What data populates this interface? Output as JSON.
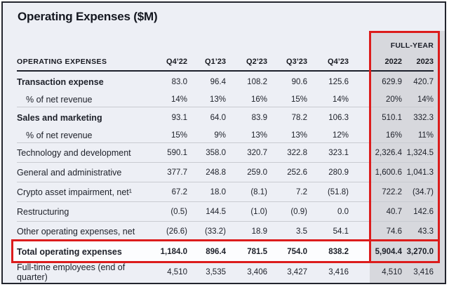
{
  "title": "Operating Expenses ($M)",
  "table": {
    "label_header": "OPERATING EXPENSES",
    "full_year_header": "FULL-YEAR",
    "quarter_columns": [
      "Q4’22",
      "Q1’23",
      "Q2’23",
      "Q3’23",
      "Q4’23"
    ],
    "year_columns": [
      "2022",
      "2023"
    ],
    "rows": [
      {
        "label": "Transaction expense",
        "bold": true,
        "indent": false,
        "total": false,
        "divider_below": false,
        "values": [
          "83.0",
          "96.4",
          "108.2",
          "90.6",
          "125.6"
        ],
        "full_year": [
          "629.9",
          "420.7"
        ]
      },
      {
        "label": "% of net revenue",
        "bold": false,
        "indent": true,
        "total": false,
        "divider_below": true,
        "values": [
          "14%",
          "13%",
          "16%",
          "15%",
          "14%"
        ],
        "full_year": [
          "20%",
          "14%"
        ]
      },
      {
        "label": "Sales and marketing",
        "bold": true,
        "indent": false,
        "total": false,
        "divider_below": false,
        "values": [
          "93.1",
          "64.0",
          "83.9",
          "78.2",
          "106.3"
        ],
        "full_year": [
          "510.1",
          "332.3"
        ]
      },
      {
        "label": "% of net revenue",
        "bold": false,
        "indent": true,
        "total": false,
        "divider_below": true,
        "values": [
          "15%",
          "9%",
          "13%",
          "13%",
          "12%"
        ],
        "full_year": [
          "16%",
          "11%"
        ]
      },
      {
        "label": "Technology and development",
        "bold": false,
        "indent": false,
        "total": false,
        "divider_below": true,
        "values": [
          "590.1",
          "358.0",
          "320.7",
          "322.8",
          "323.1"
        ],
        "full_year": [
          "2,326.4",
          "1,324.5"
        ]
      },
      {
        "label": "General and administrative",
        "bold": false,
        "indent": false,
        "total": false,
        "divider_below": true,
        "values": [
          "377.7",
          "248.8",
          "259.0",
          "252.6",
          "280.9"
        ],
        "full_year": [
          "1,600.6",
          "1,041.3"
        ]
      },
      {
        "label": "Crypto asset impairment, net¹",
        "bold": false,
        "indent": false,
        "total": false,
        "divider_below": true,
        "values": [
          "67.2",
          "18.0",
          "(8.1)",
          "7.2",
          "(51.8)"
        ],
        "full_year": [
          "722.2",
          "(34.7)"
        ]
      },
      {
        "label": "Restructuring",
        "bold": false,
        "indent": false,
        "total": false,
        "divider_below": true,
        "values": [
          "(0.5)",
          "144.5",
          "(1.0)",
          "(0.9)",
          "0.0"
        ],
        "full_year": [
          "40.7",
          "142.6"
        ]
      },
      {
        "label": "Other operating expenses, net",
        "bold": false,
        "indent": false,
        "total": false,
        "divider_below": false,
        "values": [
          "(26.6)",
          "(33.2)",
          "18.9",
          "3.5",
          "54.1"
        ],
        "full_year": [
          "74.6",
          "43.3"
        ]
      },
      {
        "label": "Total operating expenses",
        "bold": true,
        "indent": false,
        "total": true,
        "divider_below": false,
        "values": [
          "1,184.0",
          "896.4",
          "781.5",
          "754.0",
          "838.2"
        ],
        "full_year": [
          "5,904.4",
          "3,270.0"
        ]
      },
      {
        "label": "Full-time employees (end of quarter)",
        "bold": false,
        "indent": false,
        "total": false,
        "divider_below": false,
        "values": [
          "4,510",
          "3,535",
          "3,406",
          "3,427",
          "3,416"
        ],
        "full_year": [
          "4,510",
          "3,416"
        ]
      }
    ]
  },
  "colors": {
    "highlight_red": "#dc1c1c",
    "full_year_band_gray": "#d7d8dd",
    "page_background": "#edeff5",
    "text_dark": "#1d2029",
    "frame_border": "#23252e"
  }
}
